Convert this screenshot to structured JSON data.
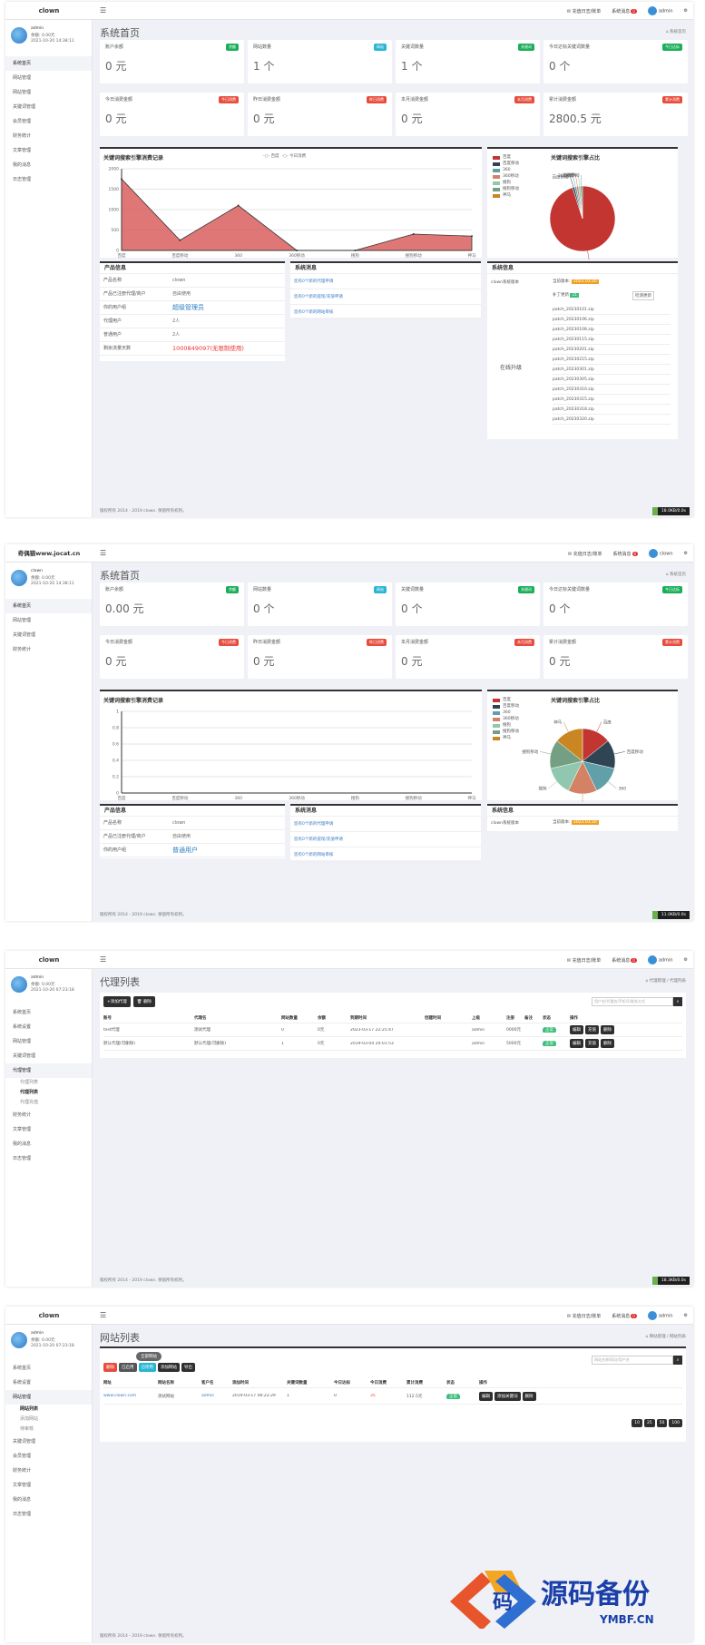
{
  "s1": {
    "logo": "clown",
    "top": {
      "item1": "充值日志/账单",
      "item2": "系统消息",
      "badge": "0",
      "user": "admin"
    },
    "user": {
      "name": "admin",
      "role": "余额: 0.00元",
      "time": "2021-10-20 14:38:11"
    },
    "nav": [
      "系统首页",
      "网站管理",
      "网站管理",
      "关键词管理",
      "会员管理",
      "财务统计",
      "文章管理",
      "我的消息",
      "日志管理"
    ],
    "title": "系统首页",
    "crumb": "系统首页",
    "cards": [
      {
        "label": "账户余额",
        "tag": "余额",
        "value": "0 元",
        "color": "#1aae5a"
      },
      {
        "label": "网站数量",
        "tag": "网站",
        "value": "1 个",
        "color": "#29b6d2"
      },
      {
        "label": "关键词数量",
        "tag": "关键词",
        "value": "1 个",
        "color": "#1aae5a"
      },
      {
        "label": "今日达标关键词数量",
        "tag": "今日达标",
        "value": "0 个",
        "color": "#1aae5a"
      },
      {
        "label": "今日消费金额",
        "tag": "今日消费",
        "value": "0 元",
        "color": "#e84c3d"
      },
      {
        "label": "昨日消费金额",
        "tag": "昨日消费",
        "value": "0 元",
        "color": "#e84c3d"
      },
      {
        "label": "本月消费金额",
        "tag": "本月消费",
        "value": "0 元",
        "color": "#e84c3d"
      },
      {
        "label": "累计消费金额",
        "tag": "累计消费",
        "value": "2800.5 元",
        "color": "#e84c3d"
      }
    ],
    "line_title": "关键词搜索引擎消费记录",
    "line_legend": [
      "百度",
      "今日消费"
    ],
    "pie_title": "关键词搜索引擎占比",
    "pie_legend": [
      "百度",
      "百度移动",
      "360",
      "360移动",
      "搜狗",
      "搜狗移动",
      "神马"
    ],
    "prod_title": "产品信息",
    "prod": [
      [
        "产品名称",
        "clown"
      ],
      [
        "产品已注册代理/商户",
        "自由使用"
      ],
      [
        "你的用户组",
        "超级管理员"
      ],
      [
        "代理用户",
        "2人"
      ],
      [
        "普通用户",
        "2人"
      ],
      [
        "剩余流量天数",
        "1000849097(无限制使用)"
      ]
    ],
    "msg_title": "系统消息",
    "msgs": [
      "您有0个新的代理申请",
      "您有0个新的提现/充值申请",
      "您有0个新的网站审核"
    ],
    "sys_title": "系统信息",
    "sys_label": "clown系统版本",
    "sys_badge": "2023.03.20",
    "sys_patch_label": "补丁更新",
    "sys_patch_btn": "检测更新",
    "patches": [
      "patch_20230101.zip",
      "patch_20230106.zip",
      "patch_20230108.zip",
      "patch_20230115.zip",
      "patch_20230201.zip",
      "patch_20230215.zip",
      "patch_20230301.zip",
      "patch_20230305.zip",
      "patch_20230310.zip",
      "patch_20230315.zip",
      "patch_20230318.zip",
      "patch_20230320.zip"
    ],
    "sys_side": "在线升级",
    "footer": "版权所有 2014 - 2019 clown. 保留所有权利。",
    "tcp": "18.0KB/0.0s"
  },
  "s2": {
    "logo": "奇偶猫www.jocat.cn",
    "top": {
      "item1": "充值日志/账单",
      "item2": "系统消息",
      "badge": "0",
      "user": "clown"
    },
    "user": {
      "name": "clown",
      "role": "余额: 0.00元",
      "time": "2021-10-20 14:38:11"
    },
    "nav": [
      "系统首页",
      "网站管理",
      "关键词管理",
      "财务统计"
    ],
    "title": "系统首页",
    "crumb": "系统首页",
    "cards": [
      {
        "label": "账户余额",
        "tag": "余额",
        "value": "0.00 元",
        "color": "#1aae5a"
      },
      {
        "label": "网站数量",
        "tag": "网站",
        "value": "0 个",
        "color": "#29b6d2"
      },
      {
        "label": "关键词数量",
        "tag": "关键词",
        "value": "0 个",
        "color": "#1aae5a"
      },
      {
        "label": "今日达标关键词数量",
        "tag": "今日达标",
        "value": "0 个",
        "color": "#1aae5a"
      },
      {
        "label": "今日消费金额",
        "tag": "今日消费",
        "value": "0 元",
        "color": "#e84c3d"
      },
      {
        "label": "昨日消费金额",
        "tag": "昨日消费",
        "value": "0 元",
        "color": "#e84c3d"
      },
      {
        "label": "本月消费金额",
        "tag": "本月消费",
        "value": "0 元",
        "color": "#e84c3d"
      },
      {
        "label": "累计消费金额",
        "tag": "累计消费",
        "value": "0 元",
        "color": "#e84c3d"
      }
    ],
    "line_title": "关键词搜索引擎消费记录",
    "pie_title": "关键词搜索引擎占比",
    "prod_title": "产品信息",
    "prod": [
      [
        "产品名称",
        "clown"
      ],
      [
        "产品已注册代理/商户",
        "自由使用"
      ],
      [
        "你的用户组",
        "普通用户"
      ]
    ],
    "msg_title": "系统消息",
    "msgs": [
      "您有0个新的代理申请",
      "您有0个新的提现/充值申请",
      "您有0个新的网站审核"
    ],
    "sys_title": "系统信息",
    "sys_label": "clown系统版本",
    "sys_badge": "2023.03.20",
    "footer": "版权所有 2014 - 2019 clown. 保留所有权利。",
    "tcp": "11.0KB/0.0s"
  },
  "s3": {
    "logo": "clown",
    "user": {
      "name": "admin",
      "role": "余额: 0.00元",
      "time": "2021-10-20 07:23:18"
    },
    "nav": [
      "系统首页",
      "系统设置",
      "网站管理",
      "关键词管理",
      "代理管理",
      "代理列表",
      "代理列表",
      "代理充值",
      "财务统计",
      "文章管理",
      "我的消息",
      "日志管理"
    ],
    "title": "代理列表",
    "crumb": "代理管理 / 代理列表",
    "btn_add": "+添加代理",
    "btn_del": "删除",
    "search_ph": "用户名/代理名/手机号/联系方式",
    "headers": [
      "账号",
      "代理名",
      "网站数量",
      "余额",
      "到期时间",
      "创建时间",
      "上级",
      "注册",
      "备注",
      "状态",
      "操作"
    ],
    "rows": [
      [
        "test代理",
        "测试代理",
        "0",
        "0元",
        "2023-03-17 22:25:47",
        "admin",
        "0000元",
        "正常"
      ],
      [
        "默认代理(可删除)",
        "默认代理(可删除)",
        "1",
        "0元",
        "2019-03-04 20:01:53",
        "admin",
        "5000元",
        "正常"
      ]
    ],
    "row_btns": [
      "编辑",
      "充值",
      "删除"
    ],
    "footer": "版权所有 2014 - 2019 clown. 保留所有权利。",
    "tcp": "18.3KB/0.0s"
  },
  "s4": {
    "logo": "clown",
    "user": {
      "name": "admin",
      "role": "余额: 0.00元",
      "time": "2021-10-20 07:23:18"
    },
    "nav": [
      "系统首页",
      "系统设置",
      "网站管理",
      "网站列表",
      "添加网站",
      "待审核",
      "关键词管理",
      "会员管理",
      "财务统计",
      "文章管理",
      "我的消息",
      "日志管理"
    ],
    "title": "网站列表",
    "crumb": "网站管理 / 网站列表",
    "tab": "全部网站",
    "tool_btns": [
      "删除",
      "已启用",
      "已停用",
      "添加网站",
      "导出"
    ],
    "search_ph": "网站名称/网址/用户名",
    "headers": [
      "网址",
      "网站名称",
      "客户名",
      "添加时间",
      "关键词数量",
      "今日达标",
      "今日消费",
      "累计消费",
      "状态",
      "操作"
    ],
    "rows": [
      [
        "www.clown.com",
        "测试网站",
        "admin",
        "2019-03-17 06:22:29",
        "1",
        "0",
        "35",
        "112.5元",
        "正常"
      ]
    ],
    "row_btns": [
      "编辑",
      "添加关键词",
      "删除"
    ],
    "pages": [
      "10",
      "25",
      "50",
      "100"
    ],
    "footer": "版权所有 2014 - 2019 clown. 保留所有权利。"
  },
  "watermark": {
    "big": "源码备份",
    "small": "YMBF.CN",
    "icon_char": "码"
  },
  "chart_data": [
    {
      "type": "area",
      "title": "关键词搜索引擎消费记录",
      "series": [
        {
          "name": "百度",
          "values": [
            1750,
            250,
            1100,
            0,
            0,
            400,
            350
          ]
        }
      ],
      "categories": [
        "百度",
        "百度移动",
        "360",
        "360移动",
        "搜狗",
        "搜狗移动",
        "神马"
      ],
      "ylim": [
        0,
        2000
      ]
    },
    {
      "type": "pie",
      "title": "关键词搜索引擎占比",
      "categories": [
        "百度",
        "百度移动",
        "360",
        "360移动",
        "搜狗",
        "搜狗移动",
        "神马"
      ],
      "values": [
        95,
        1,
        1,
        1,
        1,
        1,
        0
      ]
    },
    {
      "type": "pie",
      "title": "关键词搜索引擎占比",
      "categories": [
        "百度",
        "百度移动",
        "360",
        "360移动",
        "搜狗",
        "搜狗移动",
        "神马"
      ],
      "values": [
        1,
        1,
        1,
        1,
        1,
        1,
        1
      ]
    }
  ]
}
